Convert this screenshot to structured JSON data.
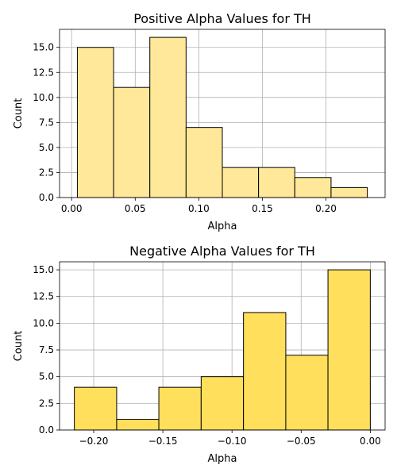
{
  "chart_data": [
    {
      "type": "bar",
      "title": "Positive Alpha Values for TH",
      "xlabel": "Alpha",
      "ylabel": "Count",
      "bar_color": "#FFE899",
      "bins": [
        {
          "x0": 0.0045,
          "x1": 0.033,
          "count": 15
        },
        {
          "x0": 0.033,
          "x1": 0.0615,
          "count": 11
        },
        {
          "x0": 0.0615,
          "x1": 0.09,
          "count": 16
        },
        {
          "x0": 0.09,
          "x1": 0.1185,
          "count": 7
        },
        {
          "x0": 0.1185,
          "x1": 0.147,
          "count": 3
        },
        {
          "x0": 0.147,
          "x1": 0.1755,
          "count": 3
        },
        {
          "x0": 0.1755,
          "x1": 0.204,
          "count": 2
        },
        {
          "x0": 0.204,
          "x1": 0.2325,
          "count": 1
        }
      ],
      "xlim": [
        -0.0095,
        0.2465
      ],
      "ylim": [
        0,
        16.8
      ],
      "xticks": [
        0.0,
        0.05,
        0.1,
        0.15,
        0.2
      ],
      "xtick_labels": [
        "0.00",
        "0.05",
        "0.10",
        "0.15",
        "0.20"
      ],
      "yticks": [
        0,
        2.5,
        5,
        7.5,
        10,
        12.5,
        15
      ],
      "ytick_labels": [
        "0.0",
        "2.5",
        "5.0",
        "7.5",
        "10.0",
        "12.5",
        "15.0"
      ],
      "grid": true
    },
    {
      "type": "bar",
      "title": "Negative Alpha Values for TH",
      "xlabel": "Alpha",
      "ylabel": "Count",
      "bar_color": "#FFDF5C",
      "bins": [
        {
          "x0": -0.214,
          "x1": -0.1834,
          "count": 4
        },
        {
          "x0": -0.1834,
          "x1": -0.1529,
          "count": 1
        },
        {
          "x0": -0.1529,
          "x1": -0.1223,
          "count": 4
        },
        {
          "x0": -0.1223,
          "x1": -0.0917,
          "count": 5
        },
        {
          "x0": -0.0917,
          "x1": -0.0611,
          "count": 11
        },
        {
          "x0": -0.0611,
          "x1": -0.0306,
          "count": 7
        },
        {
          "x0": -0.0306,
          "x1": 0.0,
          "count": 15
        }
      ],
      "xlim": [
        -0.2247,
        0.0107
      ],
      "ylim": [
        0,
        15.75
      ],
      "xticks": [
        -0.2,
        -0.15,
        -0.1,
        -0.05,
        0.0
      ],
      "xtick_labels": [
        "−0.20",
        "−0.15",
        "−0.10",
        "−0.05",
        "0.00"
      ],
      "yticks": [
        0,
        2.5,
        5,
        7.5,
        10,
        12.5,
        15
      ],
      "ytick_labels": [
        "0.0",
        "2.5",
        "5.0",
        "7.5",
        "10.0",
        "12.5",
        "15.0"
      ],
      "grid": true
    }
  ]
}
